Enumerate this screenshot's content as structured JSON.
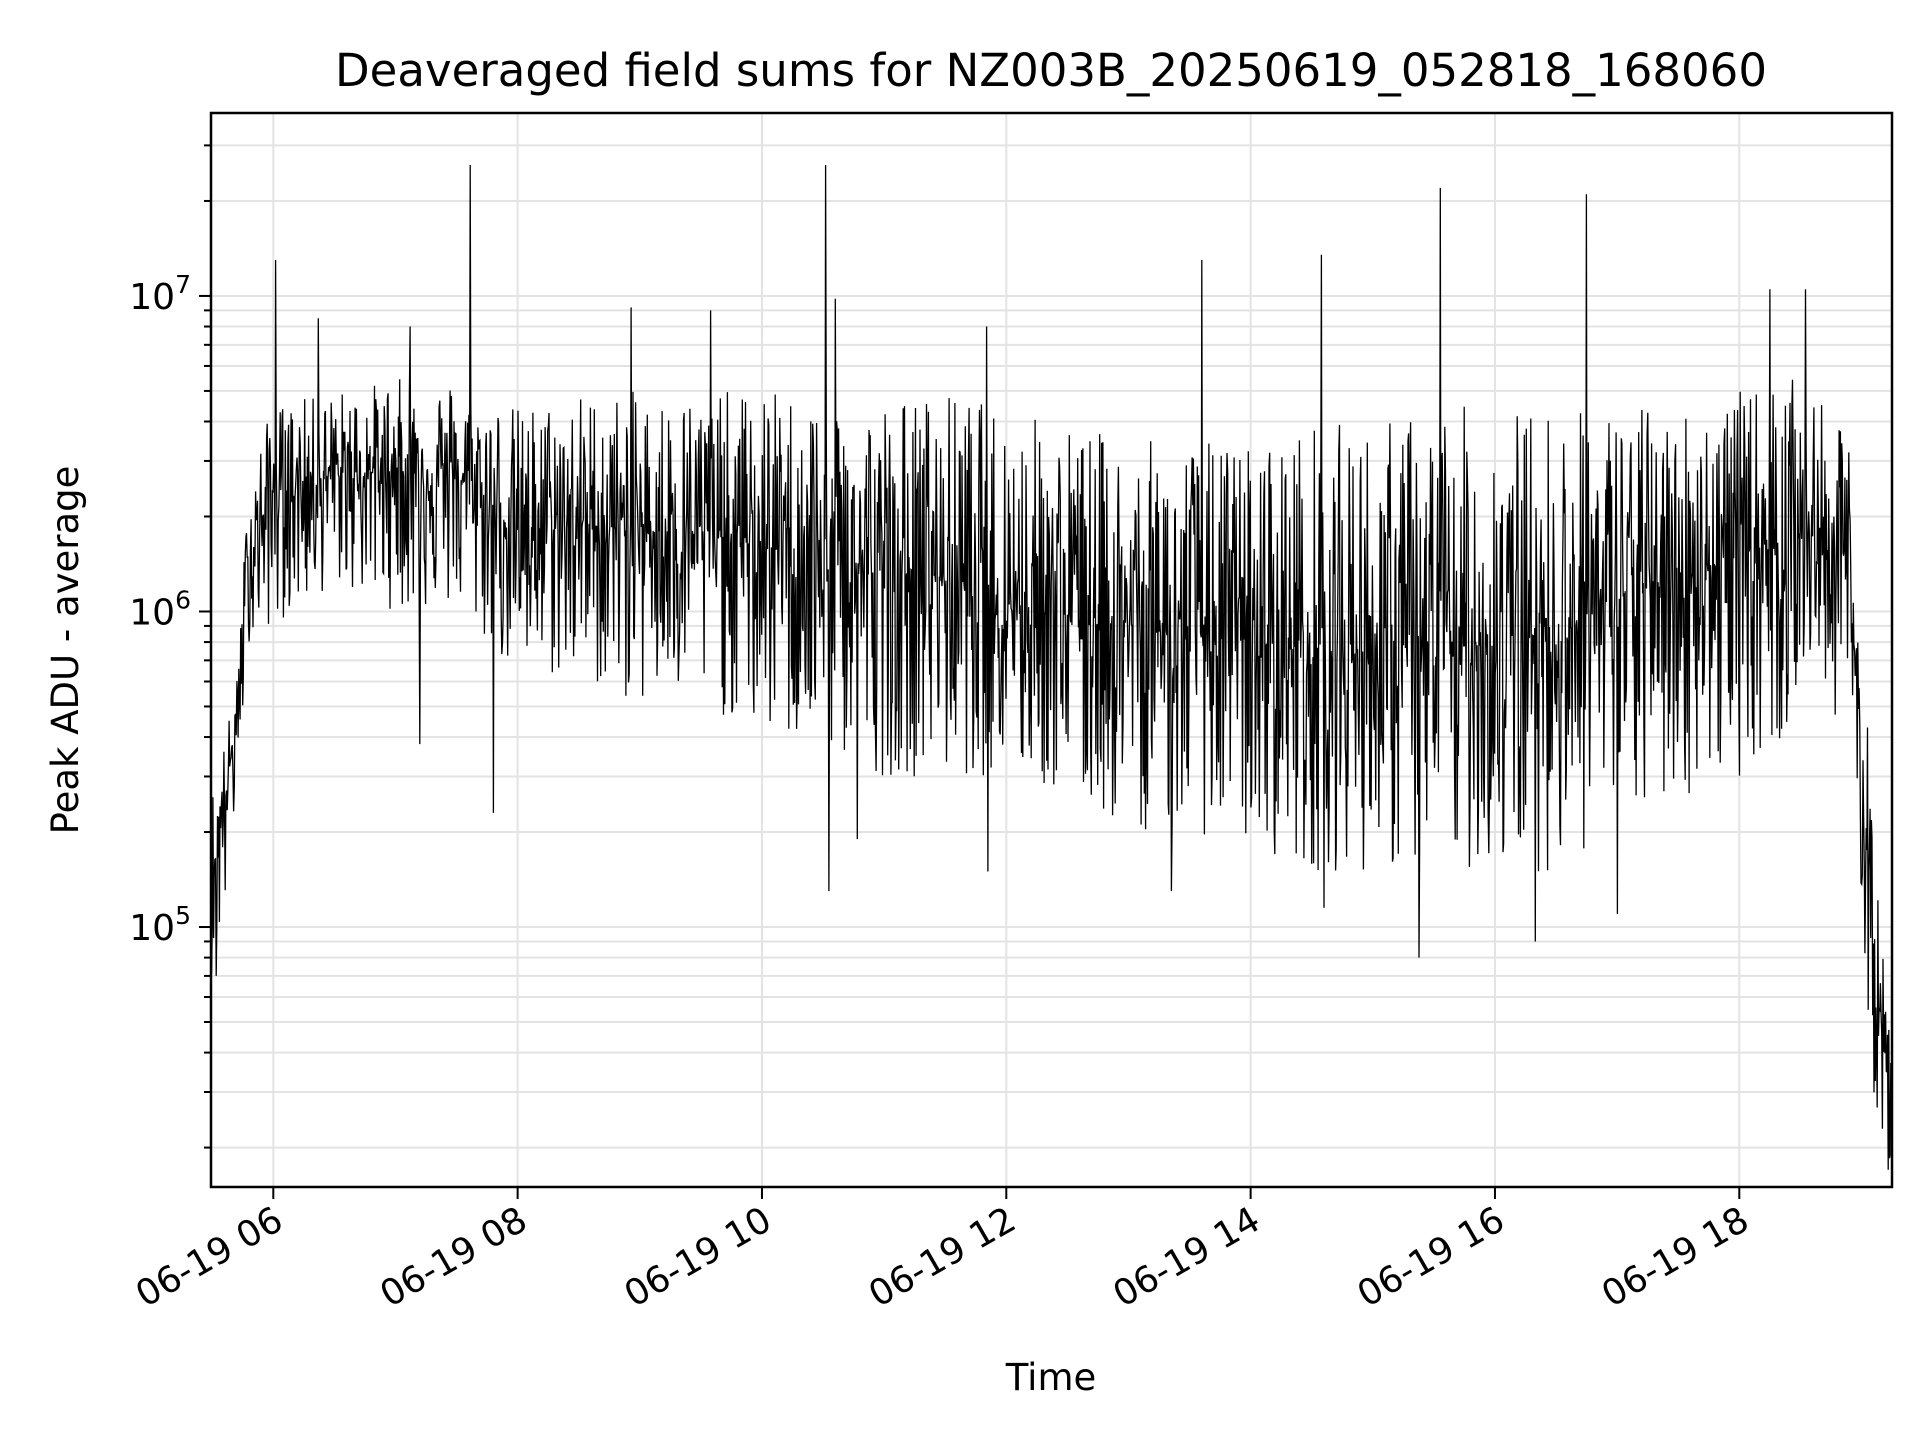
{
  "chart_data": {
    "type": "line",
    "title": "Deaveraged field sums for NZ003B_20250619_052818_168060",
    "xlabel": "Time",
    "ylabel": "Peak ADU - average",
    "yscale": "log",
    "grid": true,
    "line_color": "#000000",
    "x_ticks": [
      "06-19 06",
      "06-19 08",
      "06-19 10",
      "06-19 12",
      "06-19 14",
      "06-19 16",
      "06-19 18"
    ],
    "y_ticks": [
      {
        "base": "10",
        "exp": "5",
        "value": 100000
      },
      {
        "base": "10",
        "exp": "6",
        "value": 1000000
      },
      {
        "base": "10",
        "exp": "7",
        "value": 10000000
      }
    ],
    "xlim": [
      "2025-06-19 05:29",
      "2025-06-19 19:15"
    ],
    "ylim": [
      15000,
      38000000
    ],
    "series": [
      {
        "x_unit": "hour of 2025-06-19",
        "approximate": true,
        "envelope": [
          {
            "x": 5.49,
            "low": 70000,
            "high": 270000,
            "mid": 150000
          },
          {
            "x": 5.6,
            "low": 100000,
            "high": 400000,
            "mid": 250000
          },
          {
            "x": 5.7,
            "low": 250000,
            "high": 600000,
            "mid": 450000
          },
          {
            "x": 5.8,
            "low": 800000,
            "high": 2800000,
            "mid": 1500000
          },
          {
            "x": 6.0,
            "low": 900000,
            "high": 4500000,
            "mid": 2400000
          },
          {
            "x": 6.5,
            "low": 1200000,
            "high": 5000000,
            "mid": 2700000
          },
          {
            "x": 7.0,
            "low": 1000000,
            "high": 5500000,
            "mid": 2800000
          },
          {
            "x": 7.5,
            "low": 1000000,
            "high": 5500000,
            "mid": 2700000
          },
          {
            "x": 8.0,
            "low": 600000,
            "high": 4500000,
            "mid": 1800000
          },
          {
            "x": 8.5,
            "low": 600000,
            "high": 5000000,
            "mid": 1900000
          },
          {
            "x": 9.0,
            "low": 500000,
            "high": 5000000,
            "mid": 1800000
          },
          {
            "x": 9.5,
            "low": 500000,
            "high": 5000000,
            "mid": 1800000
          },
          {
            "x": 10.0,
            "low": 400000,
            "high": 5000000,
            "mid": 1600000
          },
          {
            "x": 10.5,
            "low": 350000,
            "high": 5000000,
            "mid": 1500000
          },
          {
            "x": 11.0,
            "low": 300000,
            "high": 4800000,
            "mid": 1300000
          },
          {
            "x": 11.5,
            "low": 300000,
            "high": 5000000,
            "mid": 1300000
          },
          {
            "x": 12.0,
            "low": 300000,
            "high": 4500000,
            "mid": 1100000
          },
          {
            "x": 12.5,
            "low": 250000,
            "high": 4000000,
            "mid": 1000000
          },
          {
            "x": 13.0,
            "low": 200000,
            "high": 3500000,
            "mid": 900000
          },
          {
            "x": 13.5,
            "low": 200000,
            "high": 3500000,
            "mid": 850000
          },
          {
            "x": 14.0,
            "low": 180000,
            "high": 3500000,
            "mid": 800000
          },
          {
            "x": 14.5,
            "low": 150000,
            "high": 4000000,
            "mid": 750000
          },
          {
            "x": 15.0,
            "low": 150000,
            "high": 4000000,
            "mid": 750000
          },
          {
            "x": 15.5,
            "low": 150000,
            "high": 4500000,
            "mid": 750000
          },
          {
            "x": 16.0,
            "low": 150000,
            "high": 4500000,
            "mid": 800000
          },
          {
            "x": 16.5,
            "low": 150000,
            "high": 4500000,
            "mid": 850000
          },
          {
            "x": 17.0,
            "low": 200000,
            "high": 4500000,
            "mid": 1100000
          },
          {
            "x": 17.5,
            "low": 250000,
            "high": 4500000,
            "mid": 1300000
          },
          {
            "x": 18.0,
            "low": 300000,
            "high": 5000000,
            "mid": 1500000
          },
          {
            "x": 18.5,
            "low": 400000,
            "high": 5500000,
            "mid": 1800000
          },
          {
            "x": 18.9,
            "low": 500000,
            "high": 3500000,
            "mid": 1500000
          },
          {
            "x": 19.0,
            "low": 100000,
            "high": 800000,
            "mid": 300000
          },
          {
            "x": 19.1,
            "low": 30000,
            "high": 250000,
            "mid": 80000
          },
          {
            "x": 19.2,
            "low": 17000,
            "high": 60000,
            "mid": 35000
          }
        ],
        "spikes": [
          {
            "x": 6.02,
            "y": 13000000
          },
          {
            "x": 6.37,
            "y": 8500000
          },
          {
            "x": 7.12,
            "y": 8000000
          },
          {
            "x": 7.61,
            "y": 26000000
          },
          {
            "x": 8.93,
            "y": 9200000
          },
          {
            "x": 9.58,
            "y": 9000000
          },
          {
            "x": 10.52,
            "y": 26000000
          },
          {
            "x": 10.6,
            "y": 9800000
          },
          {
            "x": 11.84,
            "y": 8000000
          },
          {
            "x": 13.6,
            "y": 13000000
          },
          {
            "x": 14.58,
            "y": 13500000
          },
          {
            "x": 15.55,
            "y": 22000000
          },
          {
            "x": 16.75,
            "y": 21000000
          },
          {
            "x": 18.25,
            "y": 10500000
          },
          {
            "x": 18.54,
            "y": 10500000
          }
        ],
        "dips": [
          {
            "x": 5.53,
            "y": 70000
          },
          {
            "x": 7.2,
            "y": 380000
          },
          {
            "x": 7.8,
            "y": 230000
          },
          {
            "x": 10.55,
            "y": 130000
          },
          {
            "x": 10.78,
            "y": 190000
          },
          {
            "x": 11.85,
            "y": 150000
          },
          {
            "x": 13.35,
            "y": 130000
          },
          {
            "x": 14.6,
            "y": 115000
          },
          {
            "x": 15.38,
            "y": 80000
          },
          {
            "x": 16.33,
            "y": 90000
          },
          {
            "x": 17.0,
            "y": 110000
          },
          {
            "x": 19.22,
            "y": 17000
          }
        ]
      }
    ]
  }
}
